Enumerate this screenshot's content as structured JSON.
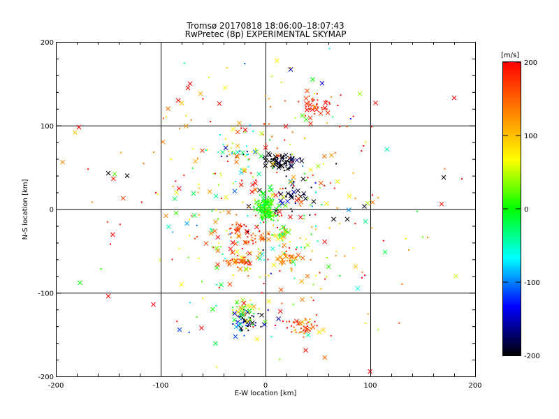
{
  "chart_data": {
    "type": "scatter",
    "title": "Tromsø 20170818 18:06:00–18:07:43",
    "subtitle": "RwPretec (8p) EXPERIMENTAL SKYMAP",
    "xlabel": "E-W location [km]",
    "ylabel": "N-S location [km]",
    "xlim": [
      -200,
      200
    ],
    "ylim": [
      -200,
      200
    ],
    "x_ticks": [
      -200,
      -100,
      0,
      100,
      200
    ],
    "y_ticks": [
      -200,
      -100,
      0,
      100,
      200
    ],
    "grid": true,
    "colorbar": {
      "label": "[m/s]",
      "range": [
        -200,
        200
      ],
      "ticks": [
        200,
        100,
        0,
        -100,
        -200
      ],
      "colormap": [
        "#000000",
        "#0000ff",
        "#00ffff",
        "#00ff00",
        "#ffff00",
        "#ff8000",
        "#ff0000"
      ]
    },
    "markers": {
      "large": "x",
      "small": "dot"
    },
    "clusters": [
      {
        "x": 0,
        "y": 0,
        "sx": 4,
        "sy": 8,
        "n": 130,
        "v": 5,
        "vs": 15
      },
      {
        "x": 15,
        "y": 57,
        "sx": 7,
        "sy": 5,
        "n": 90,
        "v": -200,
        "vs": 20
      },
      {
        "x": 48,
        "y": 125,
        "sx": 8,
        "sy": 7,
        "n": 45,
        "v": 185,
        "vs": 20
      },
      {
        "x": -20,
        "y": -135,
        "sx": 8,
        "sy": 7,
        "n": 60,
        "v": -150,
        "vs": 90
      },
      {
        "x": 35,
        "y": -140,
        "sx": 8,
        "sy": 5,
        "n": 45,
        "v": 160,
        "vs": 40
      },
      {
        "x": -25,
        "y": -62,
        "sx": 6,
        "sy": 4,
        "n": 40,
        "v": 150,
        "vs": 30
      },
      {
        "x": 20,
        "y": -60,
        "sx": 6,
        "sy": 5,
        "n": 30,
        "v": 130,
        "vs": 30
      },
      {
        "x": -10,
        "y": -35,
        "sx": 8,
        "sy": 4,
        "n": 30,
        "v": 160,
        "vs": 30
      },
      {
        "x": -28,
        "y": -22,
        "sx": 5,
        "sy": 4,
        "n": 20,
        "v": 170,
        "vs": 20
      },
      {
        "x": 15,
        "y": -30,
        "sx": 6,
        "sy": 5,
        "n": 25,
        "v": 20,
        "vs": 40
      },
      {
        "x": 20,
        "y": 15,
        "sx": 12,
        "sy": 10,
        "n": 35,
        "v": -190,
        "vs": 20
      },
      {
        "x": -30,
        "y": 70,
        "sx": 10,
        "sy": 6,
        "n": 25,
        "v": -60,
        "vs": 100
      },
      {
        "x": -20,
        "y": -120,
        "sx": 8,
        "sy": 6,
        "n": 25,
        "v": 30,
        "vs": 50
      },
      {
        "x": 0,
        "y": 0,
        "sx": 55,
        "sy": 80,
        "n": 380,
        "v": 80,
        "vs": 110
      },
      {
        "x": 0,
        "y": 0,
        "sx": 100,
        "sy": 90,
        "n": 70,
        "v": 150,
        "vs": 60
      }
    ],
    "isolated_points": [
      {
        "x": -178,
        "y": 98,
        "v": 200
      },
      {
        "x": -150,
        "y": 43,
        "v": -200
      },
      {
        "x": -132,
        "y": 40,
        "v": -200
      },
      {
        "x": -177,
        "y": -88,
        "v": 0
      },
      {
        "x": -150,
        "y": -104,
        "v": 200
      },
      {
        "x": -107,
        "y": -114,
        "v": 200
      },
      {
        "x": -85,
        "y": 20,
        "v": 60
      },
      {
        "x": -75,
        "y": -17,
        "v": -90
      },
      {
        "x": -95,
        "y": -8,
        "v": 130
      },
      {
        "x": -74,
        "y": 145,
        "v": 200
      },
      {
        "x": -72,
        "y": 150,
        "v": 200
      },
      {
        "x": -62,
        "y": 138,
        "v": 110
      },
      {
        "x": 24,
        "y": 167,
        "v": -150
      },
      {
        "x": 45,
        "y": 155,
        "v": 0
      },
      {
        "x": 90,
        "y": 138,
        "v": 40
      },
      {
        "x": 105,
        "y": 127,
        "v": 200
      },
      {
        "x": 180,
        "y": 133,
        "v": 200
      },
      {
        "x": 170,
        "y": 38,
        "v": -200
      },
      {
        "x": 168,
        "y": 6,
        "v": 200
      },
      {
        "x": 78,
        "y": -12,
        "v": -200
      },
      {
        "x": 65,
        "y": -12,
        "v": -200
      },
      {
        "x": 88,
        "y": -95,
        "v": -60
      }
    ]
  }
}
